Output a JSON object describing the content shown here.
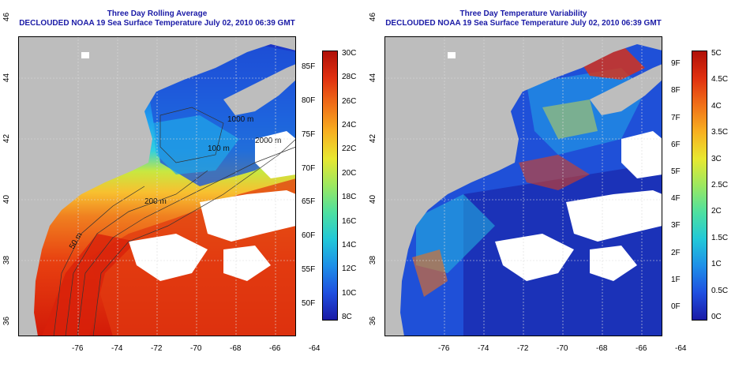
{
  "panels": [
    {
      "title": "Three Day Rolling Average",
      "subtitle": "DECLOUDED NOAA 19 Sea Surface Temperature July 02, 2010 06:39 GMT",
      "x_ticks": [
        "-76",
        "-74",
        "-72",
        "-70",
        "-68",
        "-66",
        "-64"
      ],
      "y_ticks": [
        "36",
        "38",
        "40",
        "42",
        "44",
        "46"
      ],
      "colorbar": {
        "left_labels": [
          "50F",
          "55F",
          "60F",
          "65F",
          "70F",
          "75F",
          "80F",
          "85F"
        ],
        "right_labels": [
          "8C",
          "10C",
          "12C",
          "14C",
          "16C",
          "18C",
          "20C",
          "22C",
          "24C",
          "26C",
          "28C",
          "30C"
        ],
        "colors": [
          "#1a1aa6",
          "#1f4fe0",
          "#1e8fe8",
          "#22c8d8",
          "#4ee0a0",
          "#9ce860",
          "#e8e830",
          "#f8b020",
          "#f07018",
          "#e03010",
          "#b01008"
        ]
      },
      "contour_labels": [
        "50 m",
        "100 m",
        "200 m",
        "1000 m",
        "2000 m"
      ]
    },
    {
      "title": "Three Day Temperature Variability",
      "subtitle": "DECLOUDED NOAA 19 Sea Surface Temperature July 02, 2010 06:39 GMT",
      "x_ticks": [
        "-76",
        "-74",
        "-72",
        "-70",
        "-68",
        "-66",
        "-64"
      ],
      "y_ticks": [
        "36",
        "38",
        "40",
        "42",
        "44",
        "46"
      ],
      "colorbar": {
        "left_labels": [
          "0F",
          "1F",
          "2F",
          "3F",
          "4F",
          "5F",
          "6F",
          "7F",
          "8F",
          "9F"
        ],
        "right_labels": [
          "0C",
          "0.5C",
          "1C",
          "1.5C",
          "2C",
          "2.5C",
          "3C",
          "3.5C",
          "4C",
          "4.5C",
          "5C"
        ],
        "colors": [
          "#1a1aa6",
          "#1f4fe0",
          "#1e8fe8",
          "#22c8d8",
          "#4ee0a0",
          "#9ce860",
          "#e8e830",
          "#f8b020",
          "#f07018",
          "#e03010",
          "#b01008"
        ]
      }
    }
  ],
  "colors": {
    "land": "#bdbdbd",
    "cloud": "#ffffff",
    "title": "#1a1aa6"
  }
}
